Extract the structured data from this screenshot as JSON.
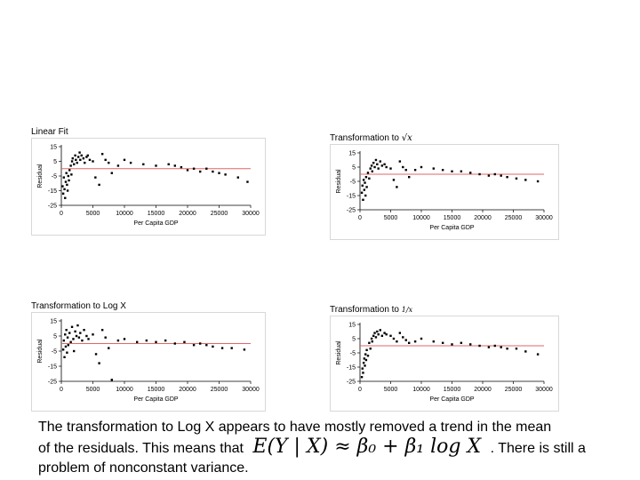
{
  "chart_data": [
    {
      "type": "scatter",
      "title": "Linear Fit",
      "xlabel": "Per Capita GDP",
      "ylabel": "Residual",
      "xlim": [
        0,
        30000
      ],
      "ylim": [
        -25,
        15
      ],
      "xticks": [
        "0",
        "5000",
        "10000",
        "15000",
        "20000",
        "25000",
        "30000"
      ],
      "yticks": [
        "15",
        "5",
        "-5",
        "-15",
        "-25"
      ],
      "reference_line": {
        "y": 0,
        "color": "#e06666"
      },
      "grid": false,
      "points": [
        [
          200,
          -12
        ],
        [
          300,
          -17
        ],
        [
          400,
          -6
        ],
        [
          500,
          -14
        ],
        [
          600,
          -20
        ],
        [
          700,
          -9
        ],
        [
          800,
          -3
        ],
        [
          900,
          -11
        ],
        [
          1000,
          -15
        ],
        [
          1100,
          -5
        ],
        [
          1200,
          -8
        ],
        [
          1300,
          -1
        ],
        [
          1500,
          2
        ],
        [
          1600,
          -4
        ],
        [
          1700,
          5
        ],
        [
          1800,
          7
        ],
        [
          2000,
          3
        ],
        [
          2200,
          9
        ],
        [
          2300,
          6
        ],
        [
          2500,
          4
        ],
        [
          2700,
          8
        ],
        [
          2900,
          11
        ],
        [
          3000,
          6
        ],
        [
          3200,
          9
        ],
        [
          3500,
          7
        ],
        [
          3700,
          4
        ],
        [
          4000,
          8
        ],
        [
          4200,
          9
        ],
        [
          4500,
          6
        ],
        [
          5000,
          5
        ],
        [
          5400,
          -6
        ],
        [
          6000,
          -11
        ],
        [
          6500,
          10
        ],
        [
          7000,
          6
        ],
        [
          7500,
          4
        ],
        [
          8000,
          -3
        ],
        [
          9000,
          2
        ],
        [
          10000,
          6
        ],
        [
          11000,
          4
        ],
        [
          13000,
          3
        ],
        [
          15000,
          2
        ],
        [
          17000,
          3
        ],
        [
          18000,
          2
        ],
        [
          19000,
          1
        ],
        [
          20000,
          -1
        ],
        [
          21000,
          0
        ],
        [
          22000,
          -2
        ],
        [
          23000,
          0
        ],
        [
          24000,
          -2
        ],
        [
          25000,
          -3
        ],
        [
          26000,
          -4
        ],
        [
          28000,
          -6
        ],
        [
          29500,
          -9
        ]
      ]
    },
    {
      "type": "scatter",
      "title_prefix": "Transformation to",
      "title_symbol": "√x",
      "xlabel": "Per Capita GDP",
      "ylabel": "Residual",
      "xlim": [
        0,
        30000
      ],
      "ylim": [
        -25,
        15
      ],
      "xticks": [
        "0",
        "5000",
        "10000",
        "15000",
        "20000",
        "25000",
        "30000"
      ],
      "yticks": [
        "15",
        "5",
        "-5",
        "-15",
        "-25"
      ],
      "reference_line": {
        "y": 0,
        "color": "#e06666"
      },
      "grid": false,
      "points": [
        [
          300,
          -13
        ],
        [
          400,
          -8
        ],
        [
          500,
          -18
        ],
        [
          600,
          -4
        ],
        [
          700,
          -11
        ],
        [
          800,
          -6
        ],
        [
          900,
          -15
        ],
        [
          1000,
          -2
        ],
        [
          1100,
          -9
        ],
        [
          1300,
          1
        ],
        [
          1500,
          -3
        ],
        [
          1700,
          4
        ],
        [
          1900,
          6
        ],
        [
          2000,
          2
        ],
        [
          2200,
          8
        ],
        [
          2400,
          5
        ],
        [
          2600,
          10
        ],
        [
          2800,
          7
        ],
        [
          3000,
          4
        ],
        [
          3300,
          9
        ],
        [
          3600,
          6
        ],
        [
          4000,
          7
        ],
        [
          4300,
          5
        ],
        [
          5000,
          4
        ],
        [
          5500,
          -4
        ],
        [
          6000,
          -9
        ],
        [
          6500,
          9
        ],
        [
          7000,
          5
        ],
        [
          7500,
          3
        ],
        [
          8000,
          -2
        ],
        [
          9000,
          3
        ],
        [
          10000,
          5
        ],
        [
          12000,
          4
        ],
        [
          13500,
          3
        ],
        [
          15000,
          2
        ],
        [
          16500,
          2
        ],
        [
          18000,
          1
        ],
        [
          19500,
          0
        ],
        [
          21000,
          -1
        ],
        [
          22000,
          0
        ],
        [
          23000,
          -1
        ],
        [
          24000,
          -2
        ],
        [
          25500,
          -3
        ],
        [
          27000,
          -4
        ],
        [
          29000,
          -5
        ]
      ]
    },
    {
      "type": "scatter",
      "title": "Transformation to Log X",
      "xlabel": "Per Capita GDP",
      "ylabel": "Residual",
      "xlim": [
        0,
        30000
      ],
      "ylim": [
        -25,
        15
      ],
      "xticks": [
        "0",
        "5000",
        "10000",
        "15000",
        "20000",
        "25000",
        "30000"
      ],
      "yticks": [
        "15",
        "5",
        "-5",
        "-15",
        "-25"
      ],
      "reference_line": {
        "y": 0,
        "color": "#e06666"
      },
      "grid": false,
      "points": [
        [
          300,
          -4
        ],
        [
          400,
          2
        ],
        [
          500,
          -9
        ],
        [
          600,
          6
        ],
        [
          700,
          -2
        ],
        [
          800,
          9
        ],
        [
          900,
          -6
        ],
        [
          1000,
          4
        ],
        [
          1100,
          -1
        ],
        [
          1300,
          7
        ],
        [
          1500,
          1
        ],
        [
          1700,
          11
        ],
        [
          1900,
          3
        ],
        [
          2000,
          -5
        ],
        [
          2200,
          8
        ],
        [
          2400,
          5
        ],
        [
          2600,
          12
        ],
        [
          2800,
          4
        ],
        [
          3000,
          7
        ],
        [
          3300,
          2
        ],
        [
          3600,
          9
        ],
        [
          4000,
          5
        ],
        [
          4300,
          3
        ],
        [
          5000,
          6
        ],
        [
          5500,
          -7
        ],
        [
          6000,
          -13
        ],
        [
          6500,
          9
        ],
        [
          7000,
          4
        ],
        [
          7500,
          -3
        ],
        [
          8000,
          -24
        ],
        [
          9000,
          2
        ],
        [
          10000,
          3
        ],
        [
          12000,
          1
        ],
        [
          13500,
          2
        ],
        [
          15000,
          1
        ],
        [
          16500,
          2
        ],
        [
          18000,
          0
        ],
        [
          19500,
          1
        ],
        [
          21000,
          -1
        ],
        [
          22000,
          0
        ],
        [
          23000,
          -1
        ],
        [
          24000,
          -2
        ],
        [
          25500,
          -3
        ],
        [
          27000,
          -3
        ],
        [
          29000,
          -4
        ]
      ]
    },
    {
      "type": "scatter",
      "title_prefix": "Transformation to",
      "title_symbol": "1/x",
      "xlabel": "Per Capita GDP",
      "ylabel": "Residual",
      "xlim": [
        0,
        30000
      ],
      "ylim": [
        -25,
        15
      ],
      "xticks": [
        "0",
        "5000",
        "10000",
        "15000",
        "20000",
        "25000",
        "30000"
      ],
      "yticks": [
        "15",
        "5",
        "-5",
        "-15",
        "-25"
      ],
      "reference_line": {
        "y": 0,
        "color": "#e06666"
      },
      "grid": false,
      "points": [
        [
          300,
          -22
        ],
        [
          400,
          -16
        ],
        [
          500,
          -19
        ],
        [
          600,
          -12
        ],
        [
          700,
          -9
        ],
        [
          800,
          -14
        ],
        [
          900,
          -6
        ],
        [
          1000,
          -10
        ],
        [
          1100,
          -3
        ],
        [
          1300,
          -7
        ],
        [
          1500,
          2
        ],
        [
          1700,
          -2
        ],
        [
          1900,
          5
        ],
        [
          2000,
          3
        ],
        [
          2200,
          7
        ],
        [
          2400,
          9
        ],
        [
          2600,
          6
        ],
        [
          2800,
          10
        ],
        [
          3000,
          8
        ],
        [
          3300,
          11
        ],
        [
          3600,
          7
        ],
        [
          4000,
          9
        ],
        [
          4300,
          8
        ],
        [
          5000,
          7
        ],
        [
          5500,
          5
        ],
        [
          6000,
          3
        ],
        [
          6500,
          9
        ],
        [
          7000,
          6
        ],
        [
          7500,
          4
        ],
        [
          8000,
          2
        ],
        [
          9000,
          3
        ],
        [
          10000,
          5
        ],
        [
          12000,
          3
        ],
        [
          13500,
          2
        ],
        [
          15000,
          1
        ],
        [
          16500,
          2
        ],
        [
          18000,
          1
        ],
        [
          19500,
          0
        ],
        [
          21000,
          -1
        ],
        [
          22000,
          0
        ],
        [
          23000,
          -1
        ],
        [
          24000,
          -2
        ],
        [
          25500,
          -2
        ],
        [
          27000,
          -4
        ],
        [
          29000,
          -6
        ]
      ]
    }
  ],
  "caption": {
    "line1": "The transformation to Log X appears to have mostly removed a trend in the mean",
    "line2_before": "of the residuals.  This means that",
    "formula": "E(Y | X) ≈ β₀ + β₁ log X",
    "line2_after": ". There is still a",
    "line3": "problem of nonconstant variance."
  }
}
